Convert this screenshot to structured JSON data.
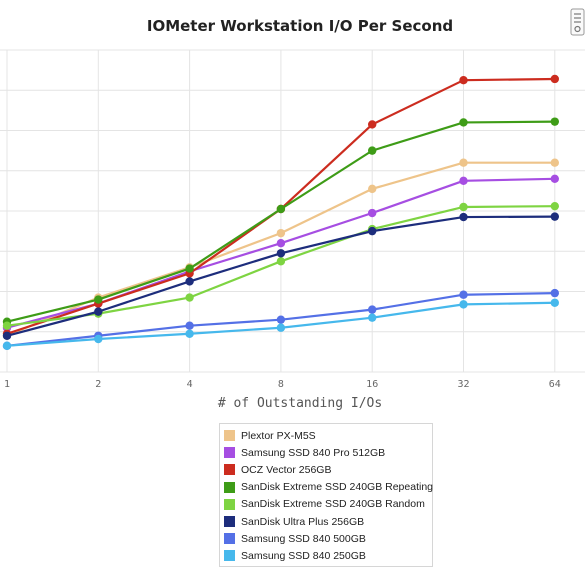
{
  "chart_data": {
    "type": "line",
    "title": "IOMeter Workstation I/O Per Second",
    "xlabel": "# of Outstanding I/Os",
    "ylabel": "",
    "categories": [
      "1",
      "2",
      "4",
      "8",
      "16",
      "32",
      "64"
    ],
    "ylim": [
      0,
      8000
    ],
    "grid": true,
    "legend_position": "bottom",
    "series": [
      {
        "name": "Plextor PX-M5S",
        "color": "#eec48a",
        "values": [
          900,
          1850,
          2600,
          3450,
          4550,
          5200,
          5200
        ]
      },
      {
        "name": "Samsung SSD 840 Pro 512GB",
        "color": "#a64ee2",
        "values": [
          1100,
          1700,
          2500,
          3200,
          3950,
          4750,
          4800
        ]
      },
      {
        "name": "OCZ Vector 256GB",
        "color": "#cc2c1f",
        "values": [
          950,
          1700,
          2450,
          4050,
          6150,
          7250,
          7280
        ]
      },
      {
        "name": "SanDisk Extreme SSD 240GB Repeating",
        "color": "#3e9c17",
        "values": [
          1250,
          1800,
          2570,
          4050,
          5500,
          6200,
          6220
        ]
      },
      {
        "name": "SanDisk Extreme SSD 240GB Random",
        "color": "#7ed442",
        "values": [
          1150,
          1450,
          1850,
          2750,
          3550,
          4100,
          4120
        ]
      },
      {
        "name": "SanDisk Ultra Plus 256GB",
        "color": "#1d2d7c",
        "values": [
          900,
          1500,
          2250,
          2950,
          3500,
          3850,
          3860
        ]
      },
      {
        "name": "Samsung SSD 840 500GB",
        "color": "#5470e6",
        "values": [
          650,
          900,
          1150,
          1300,
          1550,
          1920,
          1960
        ]
      },
      {
        "name": "Samsung SSD 840 250GB",
        "color": "#46b8ec",
        "values": [
          650,
          820,
          950,
          1100,
          1350,
          1680,
          1720
        ]
      }
    ]
  },
  "icons": {
    "export": "export-icon"
  }
}
